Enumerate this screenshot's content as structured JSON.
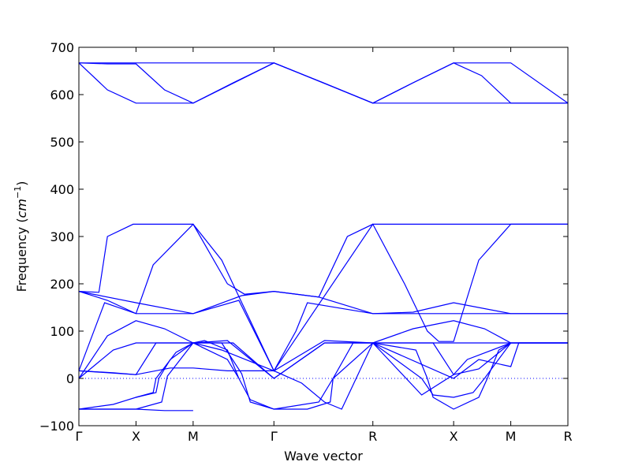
{
  "chart_data": {
    "type": "line",
    "title": "",
    "xlabel": "Wave vector",
    "ylabel_text": "Frequency (",
    "ylabel_unit": "cm",
    "ylabel_exp": "−1",
    "ylabel_close": ")",
    "ylim": [
      -100,
      700
    ],
    "yticks": [
      -100,
      0,
      100,
      200,
      300,
      400,
      500,
      600,
      700
    ],
    "x_ticks": [
      {
        "label": "Γ",
        "pos": 0
      },
      {
        "label": "X",
        "pos": 1
      },
      {
        "label": "M",
        "pos": 2
      },
      {
        "label": "Γ",
        "pos": 3.414
      },
      {
        "label": "R",
        "pos": 5.146
      },
      {
        "label": "X",
        "pos": 6.56
      },
      {
        "label": "M",
        "pos": 7.56
      },
      {
        "label": "R",
        "pos": 8.56
      }
    ],
    "xlim": [
      0,
      8.56
    ],
    "zero_line": 0,
    "line_color": "#0000ff",
    "series": [
      {
        "points": [
          [
            0,
            667
          ],
          [
            0.5,
            667
          ],
          [
            1,
            667
          ],
          [
            2,
            667
          ],
          [
            3.414,
            667
          ],
          [
            4.28,
            625
          ],
          [
            5.146,
            582
          ],
          [
            5.85,
            625
          ],
          [
            6.56,
            667
          ],
          [
            7.56,
            667
          ],
          [
            8.56,
            582
          ]
        ]
      },
      {
        "points": [
          [
            0,
            667
          ],
          [
            0.5,
            610
          ],
          [
            1,
            582
          ],
          [
            2,
            582
          ],
          [
            3.414,
            667
          ],
          [
            4.28,
            625
          ],
          [
            5.146,
            582
          ],
          [
            6.56,
            582
          ],
          [
            7.56,
            582
          ],
          [
            8.56,
            582
          ]
        ]
      },
      {
        "points": [
          [
            0,
            667
          ],
          [
            0.5,
            665
          ],
          [
            1,
            665
          ],
          [
            1.5,
            610
          ],
          [
            2,
            582
          ],
          [
            2.7,
            625
          ],
          [
            3.414,
            667
          ],
          [
            5.146,
            582
          ],
          [
            5.85,
            625
          ],
          [
            6.56,
            667
          ],
          [
            7.05,
            640
          ],
          [
            7.56,
            582
          ],
          [
            8.56,
            582
          ]
        ]
      },
      {
        "points": [
          [
            0,
            184
          ],
          [
            0.35,
            182
          ],
          [
            0.5,
            300
          ],
          [
            0.95,
            326
          ],
          [
            1,
            326
          ],
          [
            2,
            326
          ],
          [
            2.6,
            200
          ],
          [
            2.9,
            178
          ],
          [
            3.414,
            184
          ],
          [
            4.2,
            172
          ],
          [
            4.7,
            300
          ],
          [
            5.146,
            326
          ],
          [
            6.56,
            326
          ],
          [
            7.56,
            326
          ],
          [
            8.56,
            326
          ]
        ]
      },
      {
        "points": [
          [
            0,
            184
          ],
          [
            1,
            160
          ],
          [
            2,
            137
          ],
          [
            2.85,
            175
          ],
          [
            3.414,
            184
          ],
          [
            4.2,
            172
          ],
          [
            5.146,
            137
          ],
          [
            6.56,
            137
          ],
          [
            7.56,
            137
          ],
          [
            8.56,
            137
          ]
        ]
      },
      {
        "points": [
          [
            0,
            184
          ],
          [
            0.5,
            165
          ],
          [
            1,
            137
          ],
          [
            2,
            137
          ],
          [
            2.8,
            165
          ],
          [
            3.414,
            16
          ],
          [
            3.8,
            100
          ],
          [
            4.0,
            160
          ],
          [
            5.146,
            137
          ],
          [
            5.85,
            140
          ],
          [
            6.56,
            160
          ],
          [
            7.56,
            137
          ],
          [
            8.56,
            137
          ]
        ]
      },
      {
        "points": [
          [
            0,
            16
          ],
          [
            0.45,
            160
          ],
          [
            1,
            137
          ],
          [
            1.3,
            240
          ],
          [
            2,
            326
          ],
          [
            2.5,
            250
          ],
          [
            3.414,
            16
          ],
          [
            5.146,
            326
          ],
          [
            5.7,
            200
          ],
          [
            6.1,
            100
          ],
          [
            6.3,
            78
          ],
          [
            6.56,
            78
          ],
          [
            7.0,
            250
          ],
          [
            7.56,
            326
          ],
          [
            8.56,
            326
          ]
        ]
      },
      {
        "points": [
          [
            0,
            0
          ],
          [
            0.5,
            90
          ],
          [
            1,
            122
          ],
          [
            1.5,
            105
          ],
          [
            2,
            75
          ],
          [
            2.7,
            75
          ],
          [
            3.414,
            0
          ],
          [
            4.3,
            75
          ],
          [
            5.146,
            75
          ],
          [
            5.85,
            105
          ],
          [
            6.56,
            122
          ],
          [
            7.1,
            105
          ],
          [
            7.56,
            75
          ],
          [
            8.56,
            75
          ]
        ]
      },
      {
        "points": [
          [
            0,
            0
          ],
          [
            0.6,
            60
          ],
          [
            1,
            75
          ],
          [
            2,
            75
          ],
          [
            2.5,
            60
          ],
          [
            3.414,
            16
          ],
          [
            4.3,
            80
          ],
          [
            5.146,
            75
          ],
          [
            6.56,
            75
          ],
          [
            7.56,
            75
          ],
          [
            8.56,
            75
          ]
        ]
      },
      {
        "points": [
          [
            0,
            16
          ],
          [
            0.6,
            12
          ],
          [
            1,
            8
          ],
          [
            1.6,
            22
          ],
          [
            2,
            22
          ],
          [
            2.6,
            16
          ],
          [
            3.414,
            16
          ],
          [
            3.9,
            -10
          ],
          [
            4.3,
            -50
          ],
          [
            4.6,
            -65
          ],
          [
            5.146,
            75
          ],
          [
            6.0,
            -35
          ],
          [
            6.56,
            8
          ],
          [
            7.0,
            20
          ],
          [
            7.56,
            75
          ],
          [
            8.56,
            75
          ]
        ]
      },
      {
        "points": [
          [
            0,
            16
          ],
          [
            1,
            8
          ],
          [
            1.35,
            75
          ],
          [
            2,
            75
          ],
          [
            2.6,
            80
          ],
          [
            3.414,
            0
          ],
          [
            4.3,
            75
          ],
          [
            5.146,
            75
          ],
          [
            6.56,
            0
          ],
          [
            7.0,
            40
          ],
          [
            7.56,
            25
          ],
          [
            7.7,
            75
          ],
          [
            8.56,
            75
          ]
        ]
      },
      {
        "points": [
          [
            0,
            -65
          ],
          [
            1,
            -65
          ],
          [
            1.45,
            -50
          ],
          [
            1.55,
            5
          ],
          [
            2,
            75
          ],
          [
            2.5,
            75
          ],
          [
            2.85,
            10
          ],
          [
            3.0,
            -50
          ],
          [
            3.414,
            -65
          ],
          [
            4.0,
            -65
          ],
          [
            4.4,
            -50
          ],
          [
            4.45,
            0
          ],
          [
            4.8,
            75
          ],
          [
            5.146,
            75
          ],
          [
            6.2,
            75
          ],
          [
            6.56,
            8
          ],
          [
            6.8,
            40
          ],
          [
            7.56,
            75
          ],
          [
            8.56,
            75
          ]
        ]
      },
      {
        "points": [
          [
            0,
            -65
          ],
          [
            0.6,
            -55
          ],
          [
            1,
            -40
          ],
          [
            1.35,
            -30
          ],
          [
            1.4,
            0
          ],
          [
            1.6,
            40
          ],
          [
            2,
            75
          ],
          [
            2.6,
            40
          ],
          [
            2.8,
            0
          ],
          [
            3.0,
            -45
          ],
          [
            3.414,
            -65
          ],
          [
            4.2,
            -50
          ],
          [
            4.45,
            0
          ],
          [
            5.146,
            75
          ],
          [
            6.0,
            0
          ],
          [
            6.2,
            -35
          ],
          [
            6.56,
            -40
          ],
          [
            6.9,
            -30
          ],
          [
            7.1,
            0
          ],
          [
            7.56,
            75
          ]
        ]
      },
      {
        "points": [
          [
            1,
            -40
          ],
          [
            1.3,
            -30
          ],
          [
            1.35,
            0
          ],
          [
            1.7,
            55
          ],
          [
            2,
            75
          ],
          [
            2.2,
            80
          ],
          [
            2.6,
            60
          ],
          [
            2.8,
            0
          ]
        ]
      },
      {
        "points": [
          [
            0,
            -65
          ],
          [
            1,
            -65
          ],
          [
            1.5,
            -68
          ],
          [
            2,
            -68
          ]
        ]
      },
      {
        "points": [
          [
            5.146,
            75
          ],
          [
            5.9,
            60
          ],
          [
            6.1,
            0
          ],
          [
            6.2,
            -40
          ],
          [
            6.56,
            -65
          ],
          [
            7.0,
            -40
          ],
          [
            7.15,
            0
          ],
          [
            7.35,
            60
          ],
          [
            7.56,
            75
          ]
        ]
      }
    ]
  }
}
